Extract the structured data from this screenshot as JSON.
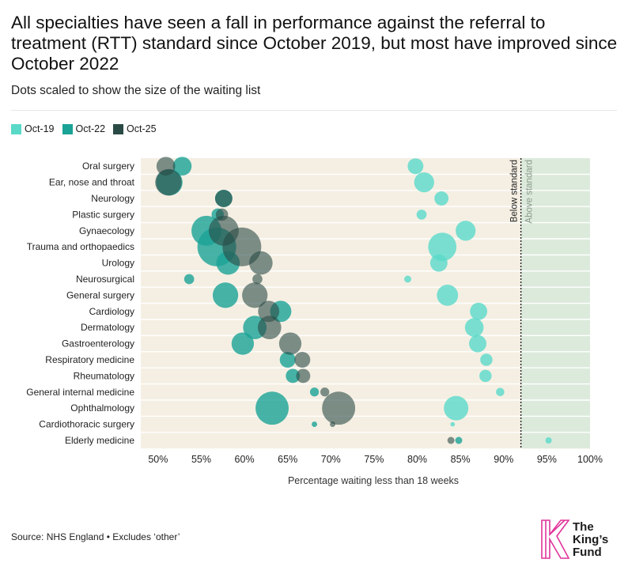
{
  "title": "All specialties have seen a fall in performance against the referral to treatment (RTT) standard since October 2019, but most have improved since October 2022",
  "subtitle": "Dots scaled to show the size of the waiting list",
  "source": "Source: NHS England • Excludes ‘other’",
  "logo": {
    "line1": "The",
    "line2": "King’s",
    "line3": "Fund"
  },
  "colors": {
    "oct19": "#5ad9c9",
    "oct22": "#1aa396",
    "oct25": "#2a4a45",
    "background_band": "#f5efe3",
    "above_band": "#dceadc",
    "logo_k": "#e0349b"
  },
  "chart_data": {
    "type": "scatter",
    "xlabel": "Percentage waiting less than 18 weeks",
    "ylabel": "",
    "xlim": [
      48,
      100
    ],
    "xticks": [
      50,
      55,
      60,
      65,
      70,
      75,
      80,
      85,
      90,
      95,
      100
    ],
    "tick_suffix": "%",
    "threshold": {
      "value": 92,
      "below_label": "Below standard",
      "above_label": "Above standard"
    },
    "legend": {
      "position": "top-left"
    },
    "series": [
      {
        "name": "Oct-19",
        "key": "oct19"
      },
      {
        "name": "Oct-22",
        "key": "oct22"
      },
      {
        "name": "Oct-25",
        "key": "oct25"
      }
    ],
    "categories": [
      {
        "name": "Oral surgery",
        "oct19": 79.8,
        "oct22": 52.8,
        "oct25": 50.9,
        "size19": 0.25,
        "size22": 0.35,
        "size25": 0.35
      },
      {
        "name": "Ear, nose and throat",
        "oct19": 80.8,
        "oct22": 51.3,
        "oct25": 51.2,
        "size19": 0.4,
        "size22": 0.7,
        "size25": 0.7
      },
      {
        "name": "Neurology",
        "oct19": 82.8,
        "oct22": 57.6,
        "oct25": 57.6,
        "size19": 0.2,
        "size22": 0.3,
        "size25": 0.3
      },
      {
        "name": "Plastic surgery",
        "oct19": 80.5,
        "oct22": 56.9,
        "oct25": 57.4,
        "size19": 0.1,
        "size22": 0.15,
        "size25": 0.15
      },
      {
        "name": "Gynaecology",
        "oct19": 85.6,
        "oct22": 55.6,
        "oct25": 57.6,
        "size19": 0.4,
        "size22": 0.9,
        "size25": 0.9
      },
      {
        "name": "Trauma and orthopaedics",
        "oct19": 82.9,
        "oct22": 56.8,
        "oct25": 59.7,
        "size19": 0.8,
        "size22": 1.5,
        "size25": 1.5
      },
      {
        "name": "Urology",
        "oct19": 82.5,
        "oct22": 58.1,
        "oct25": 61.9,
        "size19": 0.3,
        "size22": 0.55,
        "size25": 0.55
      },
      {
        "name": "Neurosurgical",
        "oct19": 78.9,
        "oct22": 53.6,
        "oct25": 61.5,
        "size19": 0.05,
        "size22": 0.1,
        "size25": 0.1
      },
      {
        "name": "General surgery",
        "oct19": 83.5,
        "oct22": 57.8,
        "oct25": 61.2,
        "size19": 0.45,
        "size22": 0.65,
        "size25": 0.65
      },
      {
        "name": "Cardiology",
        "oct19": 87.1,
        "oct22": 64.2,
        "oct25": 62.8,
        "size19": 0.3,
        "size22": 0.45,
        "size25": 0.45
      },
      {
        "name": "Dermatology",
        "oct19": 86.6,
        "oct22": 61.2,
        "oct25": 62.9,
        "size19": 0.35,
        "size22": 0.55,
        "size25": 0.55
      },
      {
        "name": "Gastroenterology",
        "oct19": 87.0,
        "oct22": 59.8,
        "oct25": 65.3,
        "size19": 0.3,
        "size22": 0.5,
        "size25": 0.5
      },
      {
        "name": "Respiratory medicine",
        "oct19": 88.0,
        "oct22": 65.0,
        "oct25": 66.7,
        "size19": 0.15,
        "size22": 0.25,
        "size25": 0.25
      },
      {
        "name": "Rheumatology",
        "oct19": 87.9,
        "oct22": 65.6,
        "oct25": 66.8,
        "size19": 0.15,
        "size22": 0.2,
        "size25": 0.2
      },
      {
        "name": "General internal medicine",
        "oct19": 89.6,
        "oct22": 68.1,
        "oct25": 69.3,
        "size19": 0.07,
        "size22": 0.08,
        "size25": 0.08
      },
      {
        "name": "Ophthalmology",
        "oct19": 84.5,
        "oct22": 63.2,
        "oct25": 70.9,
        "size19": 0.6,
        "size22": 1.1,
        "size25": 1.1
      },
      {
        "name": "Cardiothoracic surgery",
        "oct19": 84.1,
        "oct22": 68.1,
        "oct25": 70.2,
        "size19": 0.02,
        "size22": 0.03,
        "size25": 0.03
      },
      {
        "name": "Elderly medicine",
        "oct19": 95.2,
        "oct22": 84.8,
        "oct25": 83.9,
        "size19": 0.04,
        "size22": 0.05,
        "size25": 0.05
      }
    ]
  }
}
